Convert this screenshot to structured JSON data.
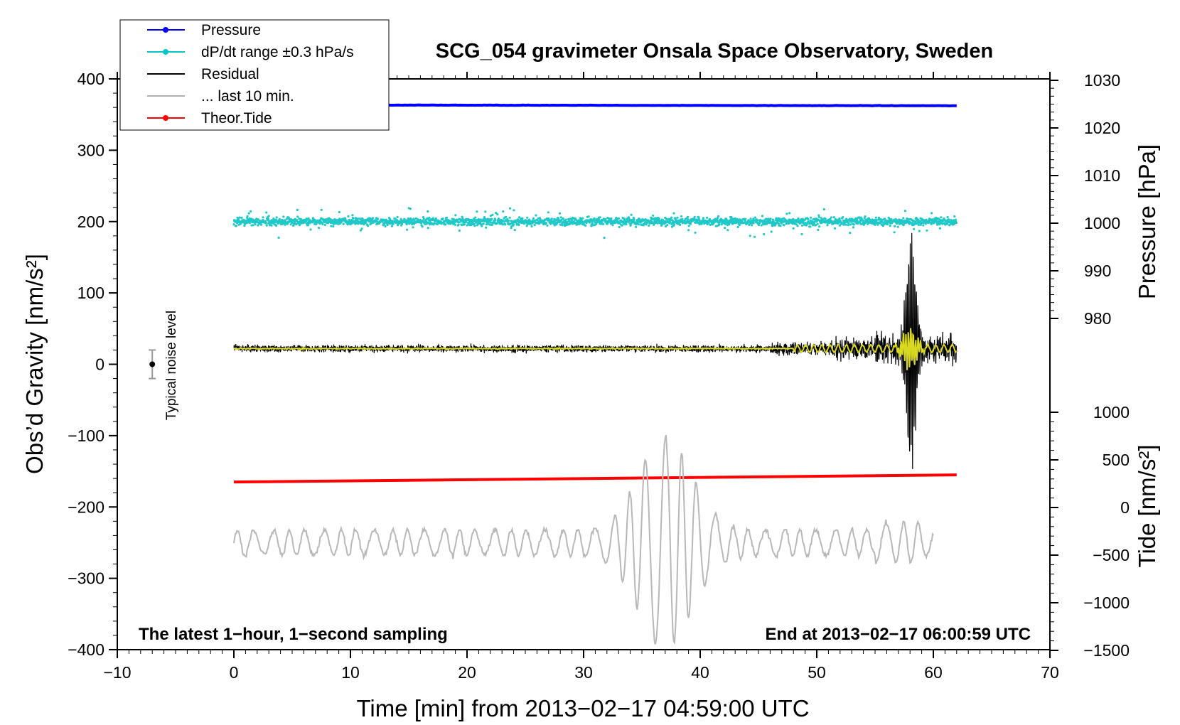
{
  "chart_data": {
    "type": "line",
    "title": "SCG_054 gravimeter Onsala Space Observatory, Sweden",
    "xlabel": "Time [min] from 2013−02−17 04:59:00 UTC",
    "ylabel_left": "Obs’d Gravity [nm/s²]",
    "ylabel_right_top": "Pressure [hPa]",
    "ylabel_right_bottom": "Tide [nm/s²]",
    "xlim": [
      -10,
      70
    ],
    "ylim_left": [
      -400,
      400
    ],
    "x_ticks": [
      "−10",
      "0",
      "10",
      "20",
      "30",
      "40",
      "50",
      "60",
      "70"
    ],
    "y_ticks_left": [
      "400",
      "300",
      "200",
      "100",
      "0",
      "−100",
      "−200",
      "−300",
      "−400"
    ],
    "y_ticks_pressure": [
      "1030",
      "1020",
      "1010",
      "1000",
      "990",
      "980"
    ],
    "y_ticks_tide": [
      "1000",
      "500",
      "0",
      "−500",
      "−1000",
      "−1500"
    ],
    "annotation_left": "The latest 1−hour, 1−second sampling",
    "annotation_right": "End at 2013−02−17 06:00:59 UTC",
    "noise_label": "Typical noise level",
    "noise_bar": {
      "x": -7,
      "center": 0,
      "half_range": 20
    },
    "legend": [
      {
        "label": "Pressure",
        "color": "#0000ff",
        "marker": true
      },
      {
        "label": "dP/dt range ±0.3 hPa/s",
        "color": "#00c8c8",
        "marker": true
      },
      {
        "label": "Residual",
        "color": "#000000",
        "marker": false
      },
      {
        "label": "... last 10 min.",
        "color": "#b0b0b0",
        "marker": false
      },
      {
        "label": "Theor.Tide",
        "color": "#ff0000",
        "marker": true
      }
    ],
    "series": [
      {
        "name": "Pressure",
        "color": "#0000ff",
        "x_range": [
          0,
          62
        ],
        "y_level": 363,
        "noise": 1
      },
      {
        "name": "dP/dt range ±0.3 hPa/s",
        "color": "#20c8c8",
        "x_range": [
          0,
          62
        ],
        "y_level": 200,
        "noise": 20
      },
      {
        "name": "Residual",
        "color": "#000000",
        "x_range": [
          0,
          62
        ],
        "y_level": 22
      },
      {
        "name": "Theor.Tide",
        "color": "#ff0000",
        "x": [
          0,
          62
        ],
        "y": [
          -165,
          -155
        ]
      },
      {
        "name": "... last 10 min.",
        "color": "#b8b8b8",
        "x_range": [
          0,
          60
        ],
        "y_level": -250
      }
    ],
    "residual_filtered_color": "#d8d820"
  }
}
